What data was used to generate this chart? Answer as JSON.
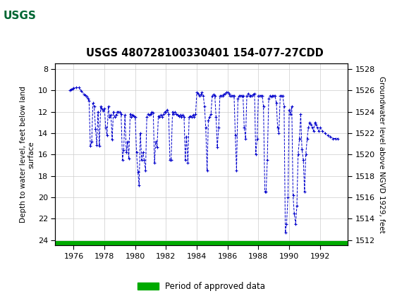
{
  "title": "USGS 480728100330401 154-077-27CDD",
  "ylabel_left": "Depth to water level, feet below land\nsurface",
  "ylabel_right": "Groundwater level above NGVD 1929, feet",
  "ylim_left": [
    24.5,
    7.5
  ],
  "ylim_right": [
    1511.5,
    1528.5
  ],
  "xlim": [
    1974.8,
    1993.8
  ],
  "xticks": [
    1976,
    1978,
    1980,
    1982,
    1984,
    1986,
    1988,
    1990,
    1992
  ],
  "yticks_left": [
    8,
    10,
    12,
    14,
    16,
    18,
    20,
    22,
    24
  ],
  "yticks_right": [
    1512,
    1514,
    1516,
    1518,
    1520,
    1522,
    1524,
    1526,
    1528
  ],
  "line_color": "#0000CC",
  "line_style": "--",
  "marker": "+",
  "marker_size": 3,
  "legend_label": "Period of approved data",
  "legend_color": "#00AA00",
  "header_color": "#006633",
  "background_color": "#ffffff",
  "plot_bg_color": "#ffffff",
  "grid_color": "#cccccc",
  "data_x": [
    1975.75,
    1975.83,
    1975.92,
    1976.0,
    1976.17,
    1976.33,
    1976.5,
    1976.67,
    1976.75,
    1976.83,
    1976.92,
    1977.0,
    1977.08,
    1977.17,
    1977.25,
    1977.33,
    1977.42,
    1977.5,
    1977.58,
    1977.67,
    1977.75,
    1977.83,
    1977.92,
    1978.0,
    1978.08,
    1978.17,
    1978.25,
    1978.33,
    1978.42,
    1978.5,
    1978.58,
    1978.67,
    1978.75,
    1978.83,
    1978.92,
    1979.0,
    1979.08,
    1979.17,
    1979.25,
    1979.33,
    1979.42,
    1979.5,
    1979.58,
    1979.67,
    1979.75,
    1979.83,
    1979.92,
    1980.0,
    1980.08,
    1980.17,
    1980.25,
    1980.33,
    1980.42,
    1980.5,
    1980.58,
    1980.67,
    1980.75,
    1980.83,
    1980.92,
    1981.0,
    1981.08,
    1981.17,
    1981.25,
    1981.33,
    1981.42,
    1981.5,
    1981.58,
    1981.67,
    1981.75,
    1981.83,
    1981.92,
    1982.0,
    1982.08,
    1982.17,
    1982.25,
    1982.33,
    1982.42,
    1982.5,
    1982.58,
    1982.67,
    1982.75,
    1982.83,
    1982.92,
    1983.0,
    1983.08,
    1983.17,
    1983.25,
    1983.33,
    1983.42,
    1983.5,
    1983.58,
    1983.67,
    1983.75,
    1983.83,
    1983.92,
    1984.0,
    1984.08,
    1984.17,
    1984.25,
    1984.33,
    1984.42,
    1984.5,
    1984.58,
    1984.67,
    1984.75,
    1984.83,
    1984.92,
    1985.0,
    1985.08,
    1985.17,
    1985.25,
    1985.33,
    1985.42,
    1985.5,
    1985.58,
    1985.67,
    1985.75,
    1985.83,
    1985.92,
    1986.0,
    1986.08,
    1986.17,
    1986.25,
    1986.33,
    1986.42,
    1986.5,
    1986.58,
    1986.67,
    1986.75,
    1986.83,
    1986.92,
    1987.0,
    1987.08,
    1987.17,
    1987.25,
    1987.33,
    1987.42,
    1987.5,
    1987.58,
    1987.67,
    1987.75,
    1987.83,
    1987.92,
    1988.0,
    1988.08,
    1988.17,
    1988.25,
    1988.33,
    1988.42,
    1988.5,
    1988.58,
    1988.67,
    1988.75,
    1988.83,
    1988.92,
    1989.0,
    1989.08,
    1989.17,
    1989.25,
    1989.33,
    1989.42,
    1989.5,
    1989.58,
    1989.67,
    1989.75,
    1989.83,
    1989.92,
    1990.0,
    1990.08,
    1990.17,
    1990.25,
    1990.33,
    1990.42,
    1990.5,
    1990.58,
    1990.67,
    1990.75,
    1990.83,
    1990.92,
    1991.0,
    1991.08,
    1991.17,
    1991.25,
    1991.33,
    1991.42,
    1991.5,
    1991.58,
    1991.67,
    1991.75,
    1991.83,
    1991.92,
    1992.0,
    1992.17,
    1992.33,
    1992.5,
    1992.67,
    1992.83,
    1993.0,
    1993.17
  ],
  "data_depth": [
    10.0,
    9.9,
    9.85,
    9.8,
    9.75,
    9.75,
    10.05,
    10.35,
    10.45,
    10.6,
    10.8,
    11.0,
    15.2,
    14.8,
    11.2,
    11.5,
    13.6,
    15.1,
    12.0,
    15.2,
    11.5,
    11.7,
    11.9,
    11.7,
    13.5,
    14.2,
    11.5,
    12.5,
    12.3,
    14.6,
    12.0,
    12.5,
    12.3,
    12.0,
    12.0,
    12.0,
    12.2,
    16.5,
    15.6,
    12.3,
    15.8,
    14.8,
    16.4,
    12.2,
    12.5,
    12.3,
    12.4,
    12.5,
    15.8,
    17.6,
    18.9,
    14.0,
    16.5,
    15.8,
    16.5,
    17.5,
    12.5,
    12.2,
    12.3,
    12.2,
    12.0,
    12.1,
    16.8,
    14.8,
    15.3,
    12.4,
    12.5,
    12.3,
    12.5,
    12.2,
    12.0,
    12.0,
    11.8,
    12.2,
    16.5,
    16.5,
    12.0,
    12.2,
    12.0,
    12.2,
    12.3,
    12.4,
    12.3,
    12.5,
    12.3,
    12.5,
    16.5,
    14.3,
    16.8,
    12.5,
    12.4,
    12.5,
    12.3,
    12.5,
    12.2,
    10.2,
    10.3,
    10.5,
    10.4,
    10.2,
    10.5,
    11.5,
    13.5,
    17.5,
    12.8,
    12.5,
    12.2,
    10.5,
    10.4,
    10.5,
    12.5,
    15.3,
    13.5,
    10.5,
    10.5,
    10.5,
    10.4,
    10.3,
    10.2,
    10.2,
    10.3,
    10.5,
    10.5,
    10.5,
    10.5,
    14.2,
    17.5,
    10.8,
    10.5,
    10.5,
    10.5,
    10.5,
    13.5,
    14.5,
    10.5,
    10.3,
    10.5,
    10.5,
    10.5,
    10.4,
    10.3,
    16.0,
    14.5,
    10.5,
    10.5,
    10.5,
    10.5,
    11.5,
    19.5,
    19.5,
    16.5,
    10.8,
    10.5,
    10.6,
    10.5,
    10.5,
    10.5,
    11.2,
    13.5,
    14.0,
    10.5,
    10.5,
    10.5,
    11.5,
    23.3,
    22.5,
    20.0,
    11.8,
    12.2,
    11.5,
    19.8,
    21.5,
    22.5,
    20.8,
    16.0,
    14.5,
    12.2,
    15.5,
    16.5,
    19.5,
    16.0,
    14.5,
    13.5,
    13.0,
    13.2,
    13.5,
    13.8,
    13.0,
    13.2,
    13.5,
    13.8,
    13.5,
    13.8,
    14.0,
    14.2,
    14.3,
    14.5,
    14.5,
    14.5
  ]
}
